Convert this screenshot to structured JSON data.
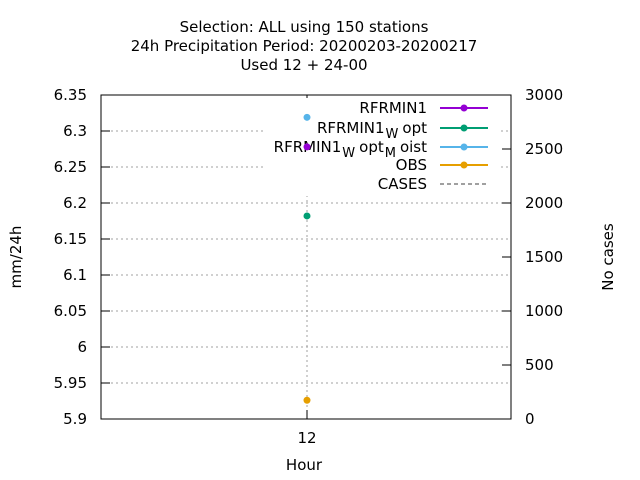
{
  "chart_data": {
    "type": "scatter",
    "title_lines": [
      "Selection: ALL using   150 stations",
      "24h Precipitation    Period: 20200203-20200217",
      "Used  12 + 24-00"
    ],
    "xlabel": "Hour",
    "ylabel": "mm/24h",
    "y2label": "No cases",
    "x_ticks": [
      "12"
    ],
    "y_ticks": [
      "5.9",
      "5.95",
      "6",
      "6.05",
      "6.1",
      "6.15",
      "6.2",
      "6.25",
      "6.3",
      "6.35"
    ],
    "y2_ticks": [
      "0",
      "500",
      "1000",
      "1500",
      "2000",
      "2500",
      "3000"
    ],
    "ylim": [
      5.9,
      6.35
    ],
    "y2lim": [
      0,
      3000
    ],
    "grid": true,
    "legend_position": "top-right",
    "series": [
      {
        "name_base": "RFRMIN1",
        "name_sub": "",
        "name_tail": "",
        "name_sub2": "",
        "name_tail2": "",
        "color": "#9400d3",
        "x": "12",
        "value": 6.278,
        "style": "line-point"
      },
      {
        "name_base": "RFRMIN1",
        "name_sub": "W",
        "name_tail": "opt",
        "name_sub2": "",
        "name_tail2": "",
        "color": "#009e73",
        "x": "12",
        "value": 6.182,
        "style": "line-point"
      },
      {
        "name_base": "RFRMIN1",
        "name_sub": "W",
        "name_tail": "opt",
        "name_sub2": "M",
        "name_tail2": "oist",
        "color": "#56b4e9",
        "x": "12",
        "value": 6.319,
        "style": "line-point"
      },
      {
        "name_base": "OBS",
        "name_sub": "",
        "name_tail": "",
        "name_sub2": "",
        "name_tail2": "",
        "color": "#e69f00",
        "x": "12",
        "value": 5.926,
        "style": "line-point"
      },
      {
        "name_base": "CASES",
        "name_sub": "",
        "name_tail": "",
        "name_sub2": "",
        "name_tail2": "",
        "color": "#808080",
        "x": "12",
        "value": 2200,
        "axis": "y2",
        "style": "dashed"
      }
    ]
  }
}
